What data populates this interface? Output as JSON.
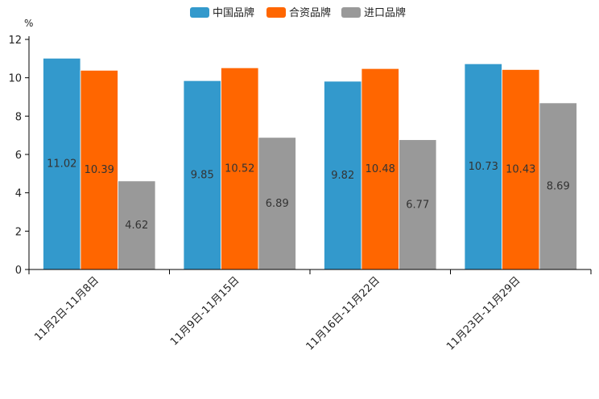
{
  "chart_data": {
    "type": "bar",
    "ylabel": "%",
    "ylim": [
      0,
      12
    ],
    "yticks": [
      0,
      2,
      4,
      6,
      8,
      10,
      12
    ],
    "categories": [
      "11月2日-11月8日",
      "11月9日-11月15日",
      "11月16日-11月22日",
      "11月23日-11月29日"
    ],
    "series": [
      {
        "name": "中国品牌",
        "color": "#3399cc",
        "values": [
          11.02,
          9.85,
          9.82,
          10.73
        ]
      },
      {
        "name": "合资品牌",
        "color": "#ff6600",
        "values": [
          10.39,
          10.52,
          10.48,
          10.43
        ]
      },
      {
        "name": "进口品牌",
        "color": "#999999",
        "values": [
          4.62,
          6.89,
          6.77,
          8.69
        ]
      }
    ],
    "legend_position": "top-center",
    "grid": false
  }
}
